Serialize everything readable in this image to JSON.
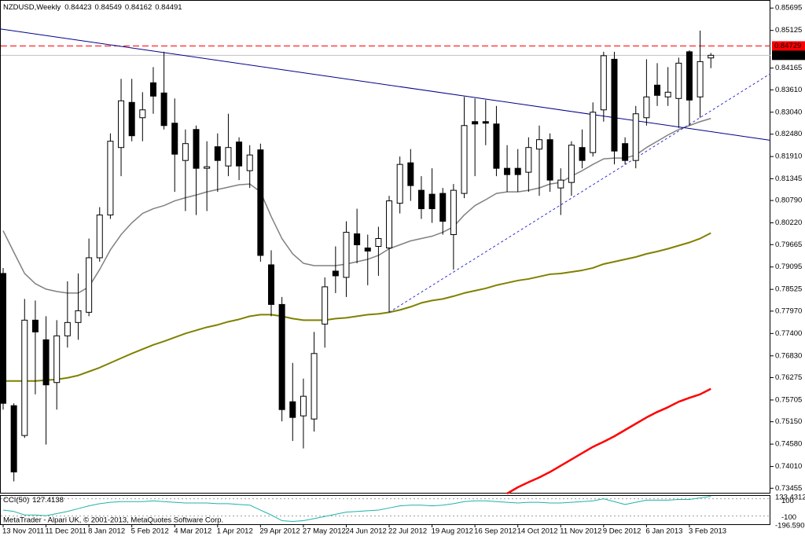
{
  "chart_data": [
    {
      "type": "candlestick",
      "title": "NZDUSD,Weekly",
      "categories": [
        "13 Nov 2011",
        null,
        null,
        null,
        "11 Dec 2011",
        null,
        null,
        null,
        "8 Jan 2012",
        null,
        null,
        null,
        "5 Feb 2012",
        null,
        null,
        null,
        "4 Mar 2012",
        null,
        null,
        null,
        "1 Apr 2012",
        null,
        null,
        null,
        "29 Apr 2012",
        null,
        null,
        null,
        "27 May 2012",
        null,
        null,
        null,
        "24 Jun 2012",
        null,
        null,
        null,
        "22 Jul 2012",
        null,
        null,
        null,
        "19 Aug 2012",
        null,
        null,
        null,
        "16 Sep 2012",
        null,
        null,
        null,
        "14 Oct 2012",
        null,
        null,
        null,
        "11 Nov 2012",
        null,
        null,
        null,
        "9 Dec 2012",
        null,
        null,
        null,
        "6 Jan 2013",
        null,
        null,
        null,
        "3 Feb 2013",
        null,
        null
      ],
      "open": [
        0.7893,
        0.7556,
        0.748,
        0.7774,
        0.7724,
        0.7615,
        0.7734,
        0.7768,
        0.7794,
        0.7933,
        0.8042,
        0.8214,
        0.8329,
        0.829,
        0.8379,
        0.8353,
        0.8276,
        0.8181,
        0.826,
        0.8161,
        0.8216,
        0.8167,
        0.8228,
        0.8155,
        0.8208,
        0.7915,
        0.7814,
        0.7566,
        0.753,
        0.7522,
        0.7764,
        0.7899,
        0.7883,
        0.7994,
        0.7958,
        0.7962,
        0.7958,
        0.8072,
        0.8175,
        0.8105,
        0.8095,
        0.8097,
        0.7992,
        0.8097,
        0.828,
        0.828,
        0.8274,
        0.8161,
        0.8161,
        0.8151,
        0.821,
        0.8234,
        0.8111,
        0.8125,
        0.8214,
        0.8201,
        0.831,
        0.8439,
        0.8224,
        0.8181,
        0.829,
        0.8373,
        0.8343,
        0.8339,
        0.8458,
        0.8343,
        0.84423
      ],
      "high": [
        0.7907,
        0.7562,
        0.7828,
        0.7824,
        0.7784,
        0.7774,
        0.7873,
        0.7893,
        0.7982,
        0.8062,
        0.825,
        0.8389,
        0.8389,
        0.8355,
        0.8419,
        0.8458,
        0.8339,
        0.826,
        0.827,
        0.823,
        0.825,
        0.83,
        0.824,
        0.822,
        0.8224,
        0.7952,
        0.7833,
        0.7665,
        0.7625,
        0.7744,
        0.7883,
        0.7962,
        0.8026,
        0.8058,
        0.7992,
        0.8012,
        0.8091,
        0.8191,
        0.821,
        0.8141,
        0.8161,
        0.8111,
        0.8121,
        0.8343,
        0.8339,
        0.8335,
        0.832,
        0.822,
        0.821,
        0.824,
        0.827,
        0.825,
        0.8161,
        0.823,
        0.826,
        0.8329,
        0.8458,
        0.8458,
        0.824,
        0.832,
        0.8439,
        0.8429,
        0.8419,
        0.8443,
        0.8462,
        0.8512,
        0.84549
      ],
      "low": [
        0.7546,
        0.7363,
        0.7474,
        0.7585,
        0.7457,
        0.7546,
        0.7704,
        0.7724,
        0.7784,
        0.7923,
        0.8032,
        0.8141,
        0.823,
        0.823,
        0.83,
        0.826,
        0.8101,
        0.8052,
        0.8042,
        0.8052,
        0.8101,
        0.8141,
        0.8131,
        0.8111,
        0.7923,
        0.7784,
        0.7516,
        0.7466,
        0.7447,
        0.749,
        0.7704,
        0.7843,
        0.7833,
        0.7919,
        0.7863,
        0.7887,
        0.7794,
        0.8046,
        0.8078,
        0.8032,
        0.8022,
        0.7992,
        0.7903,
        0.8085,
        0.8141,
        0.822,
        0.8141,
        0.8101,
        0.8101,
        0.8101,
        0.8091,
        0.8101,
        0.8042,
        0.8091,
        0.8161,
        0.8191,
        0.828,
        0.8171,
        0.8171,
        0.8161,
        0.827,
        0.832,
        0.832,
        0.8264,
        0.827,
        0.829,
        0.84162
      ],
      "close": [
        0.7562,
        0.7387,
        0.7774,
        0.7744,
        0.7609,
        0.7734,
        0.7768,
        0.7798,
        0.7933,
        0.8042,
        0.823,
        0.8333,
        0.8244,
        0.831,
        0.8345,
        0.827,
        0.8197,
        0.8224,
        0.8161,
        0.8165,
        0.8181,
        0.8214,
        0.8167,
        0.8195,
        0.7939,
        0.7814,
        0.7546,
        0.7526,
        0.758,
        0.7689,
        0.7859,
        0.7887,
        0.7998,
        0.7966,
        0.795,
        0.7982,
        0.8078,
        0.8171,
        0.8117,
        0.8058,
        0.8058,
        0.8026,
        0.8105,
        0.827,
        0.8274,
        0.8276,
        0.8161,
        0.8145,
        0.8145,
        0.8214,
        0.8234,
        0.8131,
        0.8131,
        0.822,
        0.8181,
        0.8304,
        0.8448,
        0.8205,
        0.8181,
        0.83,
        0.8343,
        0.8347,
        0.8355,
        0.8429,
        0.8335,
        0.8433,
        0.84491
      ],
      "up_color": "#ffffff",
      "down_color": "#000000",
      "moving_averages": [
        {
          "color": "#808080",
          "values": [
            0.8002,
            0.7947,
            0.7893,
            0.7867,
            0.7853,
            0.7847,
            0.7843,
            0.7843,
            0.7859,
            0.7903,
            0.7953,
            0.7992,
            0.8022,
            0.8046,
            0.8058,
            0.8066,
            0.8078,
            0.8086,
            0.8093,
            0.8101,
            0.8107,
            0.8113,
            0.8119,
            0.8121,
            0.8101,
            0.8038,
            0.7982,
            0.7943,
            0.7919,
            0.7913,
            0.7913,
            0.7913,
            0.7917,
            0.7923,
            0.7929,
            0.7939,
            0.7956,
            0.7966,
            0.7976,
            0.7982,
            0.7988,
            0.7998,
            0.8012,
            0.8042,
            0.8066,
            0.8081,
            0.8097,
            0.8101,
            0.8101,
            0.8105,
            0.8111,
            0.8121,
            0.8125,
            0.8141,
            0.8155,
            0.8171,
            0.8185,
            0.8187,
            0.8187,
            0.8195,
            0.8214,
            0.823,
            0.8246,
            0.826,
            0.827,
            0.828,
            0.8288
          ]
        },
        {
          "color": "#808000",
          "values": [
            0.7619,
            0.7619,
            0.7619,
            0.7619,
            0.7621,
            0.7623,
            0.7627,
            0.7633,
            0.7643,
            0.7653,
            0.7665,
            0.7677,
            0.7689,
            0.77,
            0.7711,
            0.772,
            0.773,
            0.774,
            0.7748,
            0.7756,
            0.7762,
            0.777,
            0.7776,
            0.7784,
            0.7788,
            0.7788,
            0.7784,
            0.7778,
            0.7774,
            0.7774,
            0.7774,
            0.7778,
            0.778,
            0.7784,
            0.7788,
            0.779,
            0.7794,
            0.78,
            0.7808,
            0.7818,
            0.7824,
            0.7828,
            0.7835,
            0.7843,
            0.7849,
            0.7855,
            0.7863,
            0.7869,
            0.7875,
            0.7879,
            0.7885,
            0.7891,
            0.7893,
            0.7897,
            0.7901,
            0.7907,
            0.7917,
            0.7923,
            0.7929,
            0.7935,
            0.7943,
            0.7949,
            0.7956,
            0.7964,
            0.7972,
            0.7982,
            0.7996
          ]
        },
        {
          "color": "#ff0000",
          "values": [
            null,
            null,
            null,
            null,
            null,
            null,
            null,
            null,
            null,
            null,
            null,
            null,
            null,
            null,
            null,
            null,
            null,
            null,
            null,
            null,
            null,
            null,
            null,
            null,
            null,
            null,
            null,
            null,
            null,
            null,
            null,
            null,
            null,
            null,
            null,
            null,
            null,
            null,
            null,
            null,
            null,
            null,
            null,
            null,
            null,
            null,
            null,
            0.7332,
            0.7348,
            0.7361,
            0.7373,
            0.7387,
            0.7403,
            0.7419,
            0.7435,
            0.7451,
            0.7464,
            0.7478,
            0.7494,
            0.751,
            0.7526,
            0.754,
            0.7552,
            0.7566,
            0.7576,
            0.7585,
            0.7599
          ]
        }
      ],
      "trendlines": [
        {
          "color": "#00008b",
          "dashed": false,
          "points": [
            [
              15,
              0.8456
            ],
            [
              56,
              0.8294
            ]
          ]
        },
        {
          "color": "#3333cc",
          "dashed": true,
          "points": [
            [
              36,
              0.7794
            ],
            [
              63,
              0.8256
            ]
          ]
        }
      ],
      "price_lines": [
        {
          "value": 0.84729,
          "color": "#ff0000",
          "dashed": true
        },
        {
          "value": 0.84491,
          "color": "#c0c0c0",
          "dashed": false
        }
      ],
      "ylim": [
        0.7332,
        0.859
      ],
      "yticks": [
        0.85695,
        0.85125,
        0.84165,
        {
          "value": 0.8361,
          "label": "0.83610"
        },
        {
          "value": 0.8304,
          "label": "0.83040"
        },
        {
          "value": 0.8248,
          "label": "0.82480"
        },
        {
          "value": 0.8191,
          "label": "0.81910"
        },
        0.81345,
        {
          "value": 0.8079,
          "label": "0.80790"
        },
        {
          "value": 0.8022,
          "label": "0.80220"
        },
        0.79665,
        0.79095,
        0.78525,
        {
          "value": 0.7797,
          "label": "0.77970"
        },
        {
          "value": 0.774,
          "label": "0.77400"
        },
        {
          "value": 0.7683,
          "label": "0.76830"
        },
        0.76275,
        0.75705,
        {
          "value": 0.7515,
          "label": "0.75150"
        },
        {
          "value": 0.7458,
          "label": "0.74580"
        },
        {
          "value": 0.7401,
          "label": "0.74010"
        },
        0.73455
      ]
    },
    {
      "type": "line",
      "title": "CCI(50)",
      "color": "#20b2aa",
      "values": [
        -32,
        -48,
        -89,
        -89,
        -97,
        -73,
        -48,
        -15,
        18,
        43,
        59,
        67,
        67,
        67,
        76,
        67,
        59,
        51,
        51,
        51,
        43,
        43,
        34,
        26,
        -32,
        -89,
        -155,
        -164,
        -155,
        -131,
        -106,
        -81,
        -56,
        -48,
        -40,
        -32,
        -7,
        18,
        26,
        26,
        18,
        26,
        43,
        67,
        76,
        76,
        67,
        59,
        51,
        59,
        59,
        51,
        51,
        59,
        67,
        76,
        100,
        67,
        34,
        59,
        84,
        84,
        84,
        92,
        92,
        110,
        127.4138
      ],
      "ylim": [
        -196.5906,
        133.4312
      ],
      "yticks": [
        -100,
        100
      ]
    }
  ],
  "footer": "MetaTrader - Alpari UK, © 2001-2013, MetaQuotes Software Corp."
}
